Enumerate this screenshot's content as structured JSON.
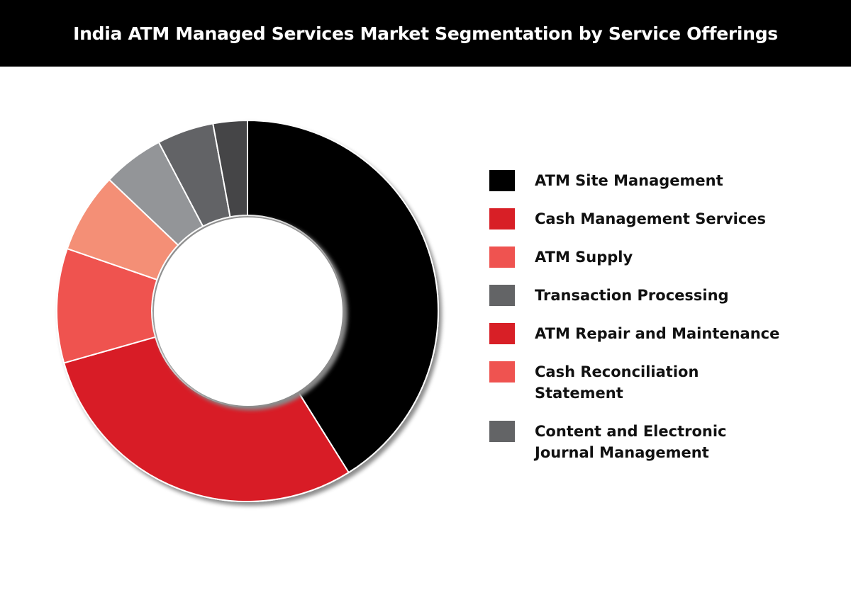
{
  "chart_data": {
    "type": "pie",
    "variant": "donut",
    "title": "India ATM Managed Services Market Segmentation by Service Offerings",
    "legend_position": "right",
    "slices": [
      {
        "label": "ATM Site Management",
        "value": 41.1,
        "color": "#000000",
        "legend_color": "#000000"
      },
      {
        "label": "Cash Management Services",
        "value": 29.5,
        "color": "#d81f26",
        "legend_color": "#d81f26"
      },
      {
        "label": "ATM Supply",
        "value": 9.7,
        "color": "#ef5350",
        "legend_color": "#ef5350"
      },
      {
        "label": "Transaction Processing",
        "value": 6.8,
        "color": "#f48f76",
        "legend_color": "#636466"
      },
      {
        "label": "ATM Repair and Maintenance",
        "value": 5.2,
        "color": "#939598",
        "legend_color": "#d81f26"
      },
      {
        "label": "Cash Reconciliation Statement",
        "value": 4.8,
        "color": "#626366",
        "legend_color": "#ef5350"
      },
      {
        "label": "Content and Electronic Journal Management",
        "value": 2.9,
        "color": "#454547",
        "legend_color": "#636466"
      }
    ]
  }
}
